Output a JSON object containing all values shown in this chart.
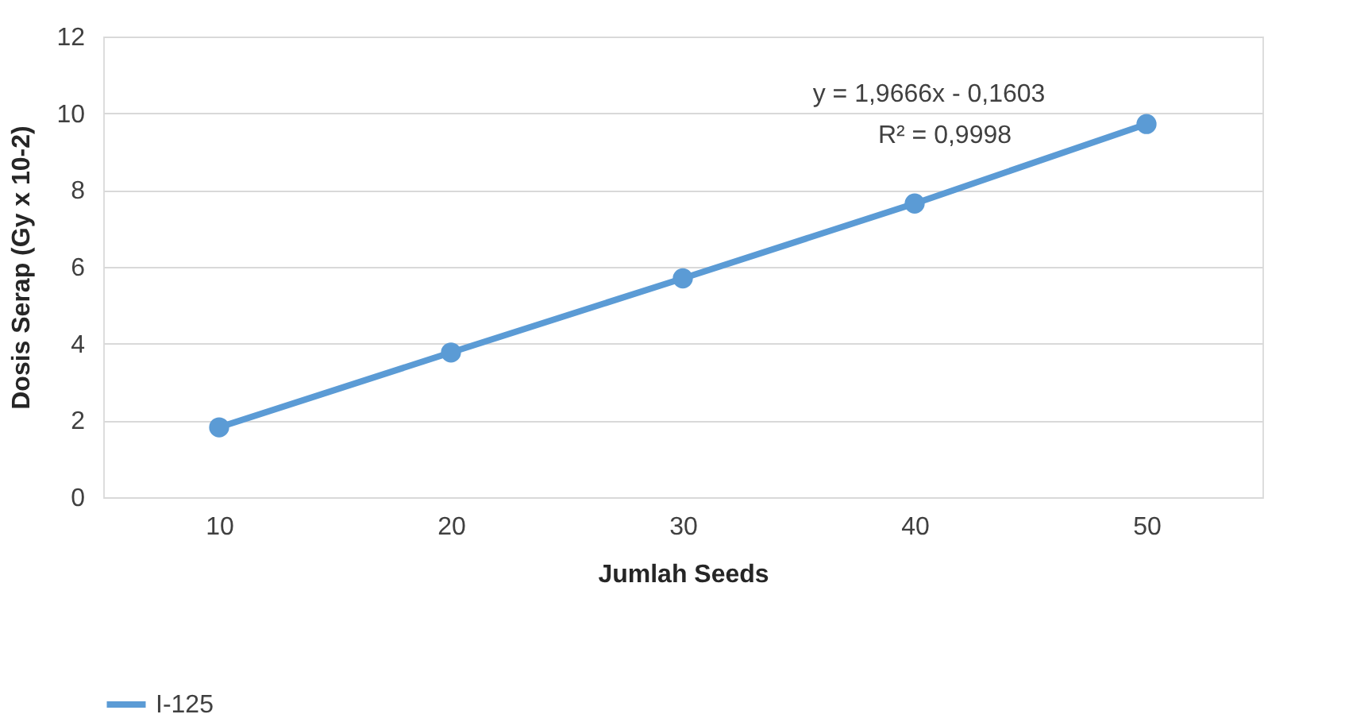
{
  "chart_data": {
    "type": "line",
    "xlabel": "Jumlah Seeds",
    "ylabel": "Dosis Serap (Gy x 10-2)",
    "categories": [
      "10",
      "20",
      "30",
      "40",
      "50"
    ],
    "series": [
      {
        "name": "I-125",
        "color": "#5b9bd5",
        "values": [
          1.82,
          3.77,
          5.7,
          7.65,
          9.72
        ]
      }
    ],
    "ylim": [
      0,
      12
    ],
    "yticks": [
      0,
      2,
      4,
      6,
      8,
      10,
      12
    ],
    "grid": "y",
    "legend": "bottom",
    "marker": "circle",
    "line_style": "solid",
    "annotations": [
      "y = 1,9666x - 0,1603",
      "R² = 0,9998"
    ]
  }
}
